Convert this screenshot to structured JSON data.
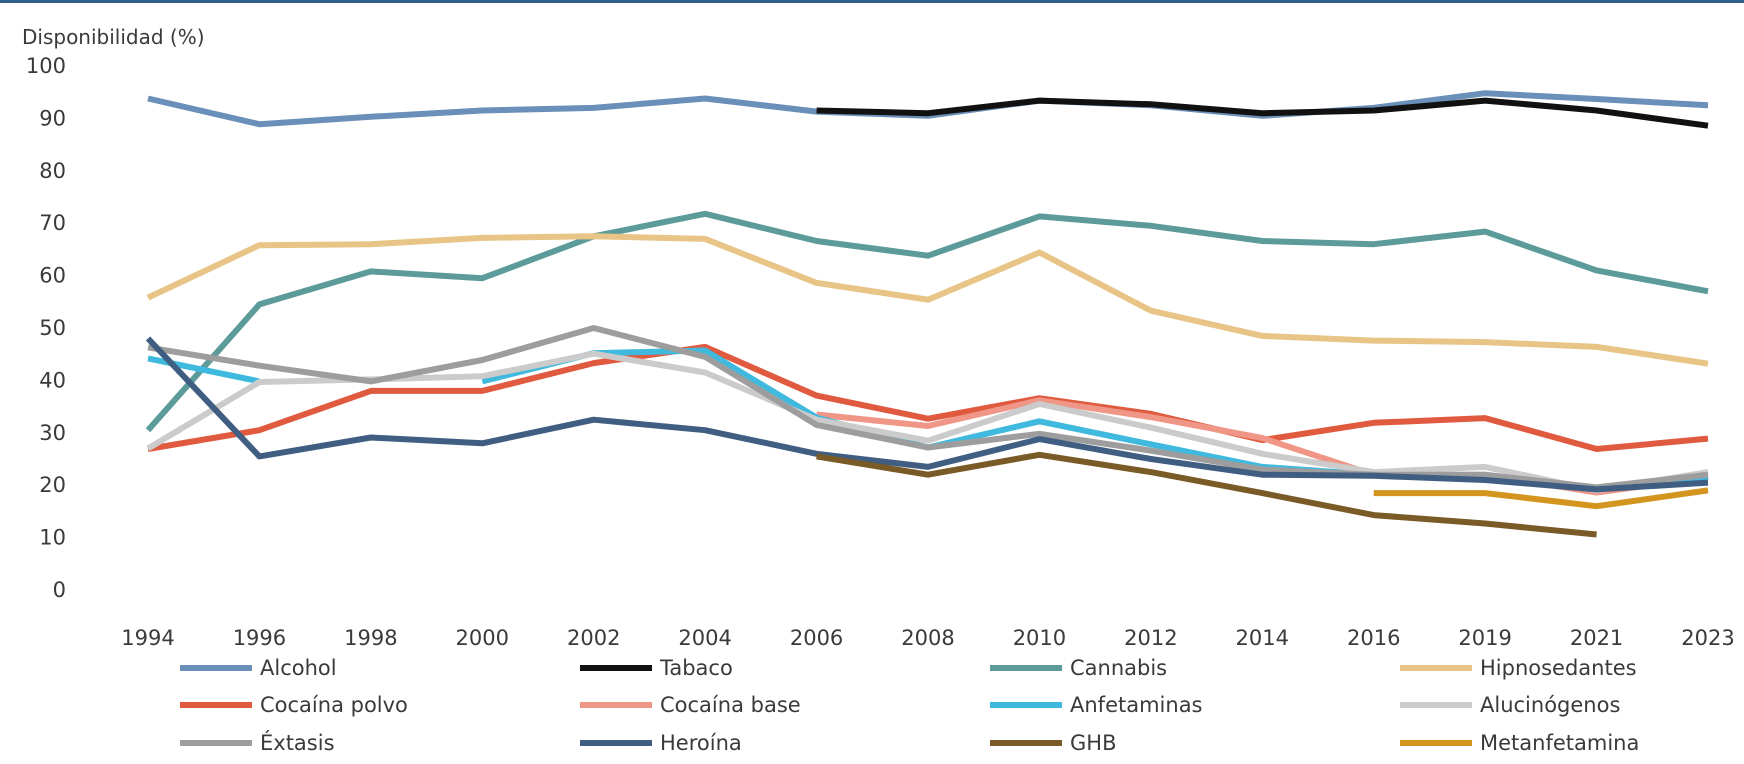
{
  "chart_data": {
    "type": "line",
    "ylabel": "Disponibilidad (%)",
    "xlabel": "",
    "ylim": [
      0,
      100
    ],
    "yticks": [
      0,
      10,
      20,
      30,
      40,
      50,
      60,
      70,
      80,
      90,
      100
    ],
    "categories": [
      "1994",
      "1996",
      "1998",
      "2000",
      "2002",
      "2004",
      "2006",
      "2008",
      "2010",
      "2012",
      "2014",
      "2016",
      "2019",
      "2021",
      "2023"
    ],
    "grid": false,
    "legend_position": "bottom",
    "series": [
      {
        "name": "Alcohol",
        "color": "#6a8fb8",
        "values": [
          93.8,
          88.9,
          90.3,
          91.5,
          92.0,
          93.8,
          91.3,
          90.5,
          93.4,
          92.5,
          90.5,
          92.0,
          94.8,
          93.7,
          92.5
        ]
      },
      {
        "name": "Tabaco",
        "color": "#111111",
        "values": [
          null,
          null,
          null,
          null,
          null,
          null,
          91.5,
          91.0,
          93.4,
          92.7,
          91.0,
          91.5,
          93.4,
          91.5,
          88.6
        ]
      },
      {
        "name": "Cannabis",
        "color": "#5c9b9a",
        "values": [
          30.5,
          54.5,
          60.8,
          59.5,
          67.5,
          71.8,
          66.6,
          63.8,
          71.3,
          69.5,
          66.6,
          66.0,
          68.4,
          61.0,
          57.0
        ]
      },
      {
        "name": "Hipnosedantes",
        "color": "#e8c486",
        "values": [
          55.8,
          65.8,
          66.0,
          67.2,
          67.5,
          67.0,
          58.6,
          55.4,
          64.4,
          53.3,
          48.5,
          47.6,
          47.3,
          46.4,
          43.2
        ]
      },
      {
        "name": "Cocaína polvo",
        "color": "#e05a3f",
        "values": [
          26.9,
          30.5,
          38.0,
          38.0,
          43.3,
          46.4,
          37.1,
          32.7,
          36.6,
          33.6,
          28.6,
          31.9,
          32.8,
          26.9,
          28.9
        ]
      },
      {
        "name": "Cocaína base",
        "color": "#ef9686",
        "values": [
          null,
          null,
          null,
          null,
          null,
          null,
          33.5,
          31.3,
          36.2,
          33.0,
          29.0,
          22.0,
          22.0,
          18.6,
          21.5
        ]
      },
      {
        "name": "Anfetaminas",
        "color": "#3fb9dd",
        "values": [
          44.2,
          39.8,
          null,
          39.8,
          45.2,
          45.7,
          32.9,
          27.2,
          32.2,
          27.8,
          23.5,
          22.0,
          21.5,
          19.3,
          21.5
        ]
      },
      {
        "name": "Alucinógenos",
        "color": "#cbcbcb",
        "values": [
          27.0,
          39.7,
          40.2,
          40.8,
          45.1,
          41.5,
          32.5,
          28.5,
          35.5,
          31.0,
          26.0,
          22.5,
          23.5,
          19.0,
          22.5
        ]
      },
      {
        "name": "Éxtasis",
        "color": "#9d9d9d",
        "values": [
          46.3,
          42.8,
          39.8,
          43.9,
          50.0,
          44.5,
          31.5,
          27.2,
          29.8,
          26.6,
          23.0,
          22.0,
          22.0,
          19.6,
          22.0
        ]
      },
      {
        "name": "Heroína",
        "color": "#3f5e82",
        "values": [
          48.0,
          25.5,
          29.1,
          28.0,
          32.5,
          30.5,
          26.0,
          23.5,
          28.8,
          25.0,
          22.0,
          21.8,
          21.0,
          19.2,
          20.5
        ]
      },
      {
        "name": "GHB",
        "color": "#7a5a26",
        "values": [
          null,
          null,
          null,
          null,
          null,
          null,
          25.5,
          22.0,
          25.8,
          22.5,
          18.5,
          14.3,
          12.7,
          10.6,
          null
        ]
      },
      {
        "name": "Metanfetamina",
        "color": "#d4951e",
        "values": [
          null,
          null,
          null,
          null,
          null,
          null,
          null,
          null,
          null,
          null,
          null,
          18.5,
          18.5,
          16.0,
          19.0
        ]
      }
    ]
  }
}
